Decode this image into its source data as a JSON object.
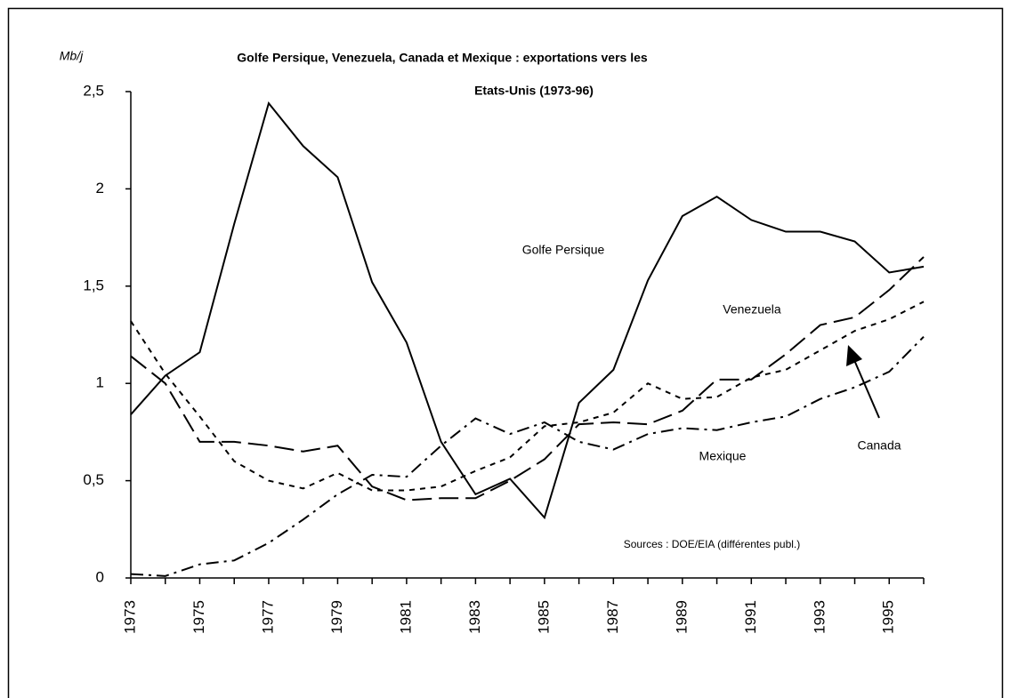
{
  "chart_data": {
    "type": "line",
    "title": [
      "Golfe Persique, Venezuela, Canada et Mexique : exportations vers les",
      "Etats-Unis (1973-96)"
    ],
    "y_label": "Mb/j",
    "x": [
      1973,
      1974,
      1975,
      1976,
      1977,
      1978,
      1979,
      1980,
      1981,
      1982,
      1983,
      1984,
      1985,
      1986,
      1987,
      1988,
      1989,
      1990,
      1991,
      1992,
      1993,
      1994,
      1995,
      1996
    ],
    "xlim": [
      1973,
      1996
    ],
    "xticks": [
      1973,
      1975,
      1977,
      1979,
      1981,
      1983,
      1985,
      1987,
      1989,
      1991,
      1993,
      1995
    ],
    "ylim": [
      0,
      2.5
    ],
    "yticks": [
      0,
      {
        "value": 0.5,
        "label": "0,5"
      },
      1,
      {
        "value": 1.5,
        "label": "1,5"
      },
      2,
      {
        "value": 2.5,
        "label": "2,5"
      }
    ],
    "grid": false,
    "series": [
      {
        "name": "Golfe Persique",
        "color": "#000000",
        "dash": "solid",
        "values": [
          0.84,
          1.04,
          1.16,
          1.82,
          2.44,
          2.22,
          2.06,
          1.52,
          1.21,
          0.7,
          0.43,
          0.51,
          0.31,
          0.9,
          1.07,
          1.53,
          1.86,
          1.96,
          1.84,
          1.78,
          1.78,
          1.73,
          1.57,
          1.6
        ]
      },
      {
        "name": "Venezuela",
        "color": "#000000",
        "dash": "long",
        "values": [
          1.14,
          1.0,
          0.7,
          0.7,
          0.68,
          0.65,
          0.68,
          0.47,
          0.4,
          0.41,
          0.41,
          0.5,
          0.61,
          0.79,
          0.8,
          0.79,
          0.86,
          1.02,
          1.02,
          1.15,
          1.3,
          1.34,
          1.48,
          1.65
        ]
      },
      {
        "name": "Canada",
        "color": "#000000",
        "dash": "short",
        "values": [
          1.32,
          1.05,
          0.83,
          0.6,
          0.5,
          0.46,
          0.54,
          0.45,
          0.45,
          0.47,
          0.55,
          0.62,
          0.78,
          0.8,
          0.85,
          1.0,
          0.92,
          0.93,
          1.03,
          1.07,
          1.17,
          1.27,
          1.33,
          1.42
        ]
      },
      {
        "name": "Mexique",
        "color": "#000000",
        "dash": "dashdot",
        "values": [
          0.02,
          0.01,
          0.07,
          0.09,
          0.18,
          0.3,
          0.43,
          0.53,
          0.52,
          0.68,
          0.82,
          0.74,
          0.8,
          0.7,
          0.66,
          0.74,
          0.77,
          0.76,
          0.8,
          0.83,
          0.92,
          0.98,
          1.06,
          1.24
        ]
      }
    ],
    "annotations": [
      "Sources : DOE/EIA (différentes publ.)"
    ]
  }
}
